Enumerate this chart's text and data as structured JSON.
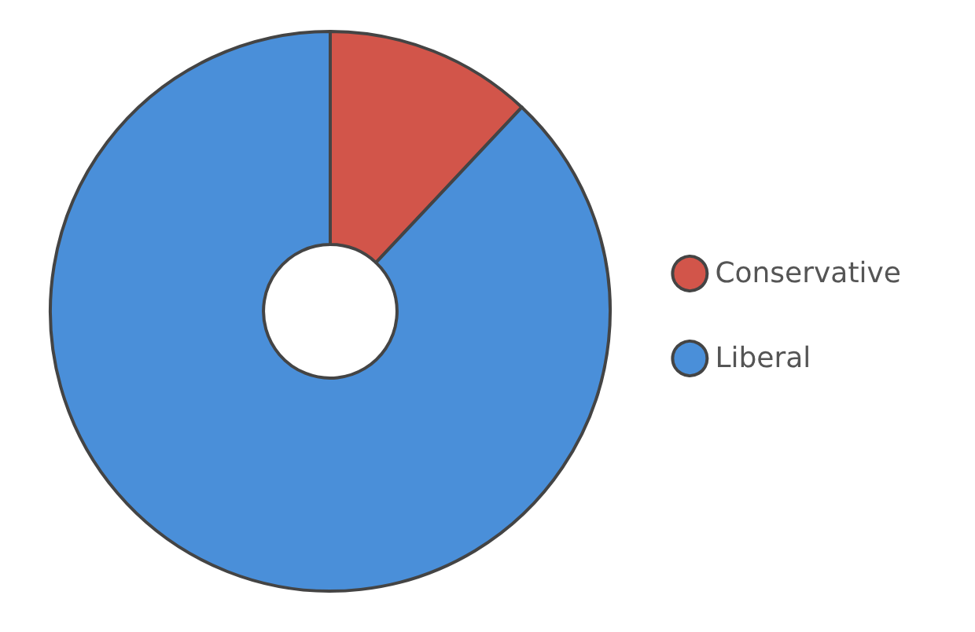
{
  "chart_data": {
    "type": "donut",
    "categories": [
      "Conservative",
      "Liberal"
    ],
    "values": [
      12,
      88
    ],
    "colors": [
      "#d2554a",
      "#4a8fd9"
    ],
    "legend": "right"
  }
}
